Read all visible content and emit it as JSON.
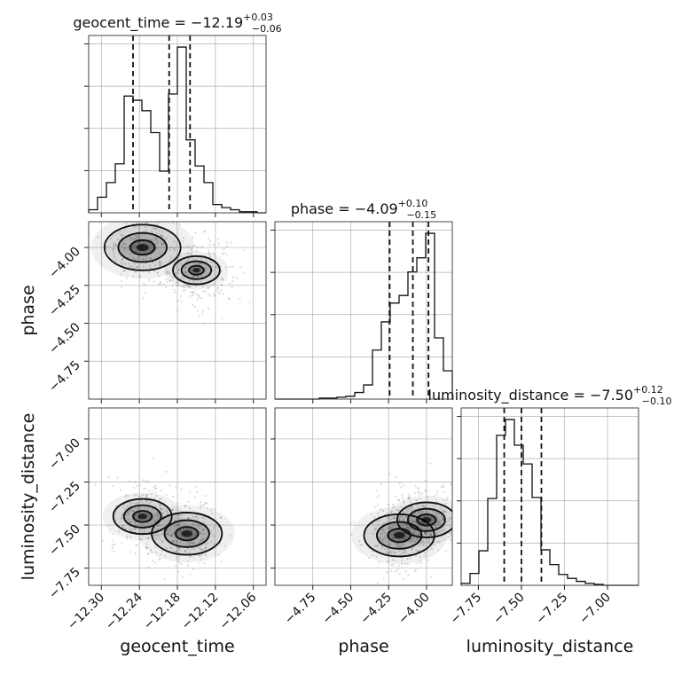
{
  "chart_data": {
    "type": "corner",
    "parameters": [
      "geocent_time",
      "phase",
      "luminosity_distance"
    ],
    "axis_labels": {
      "x": [
        "geocent_time",
        "phase",
        "luminosity_distance"
      ],
      "y": [
        "phase",
        "luminosity_distance"
      ]
    },
    "titles": [
      {
        "param": "geocent_time",
        "text": "geocent_time = −12.19",
        "sup": "+0.03",
        "sub": "−0.06"
      },
      {
        "param": "phase",
        "text": "phase = −4.09",
        "sup": "+0.10",
        "sub": "−0.15"
      },
      {
        "param": "luminosity_distance",
        "text": "luminosity_distance = −7.50",
        "sup": "+0.12",
        "sub": "−0.10"
      }
    ],
    "ranges": {
      "geocent_time": [
        -12.32,
        -12.04
      ],
      "phase": [
        -5.0,
        -3.83
      ],
      "luminosity_distance": [
        -7.85,
        -6.82
      ]
    },
    "ticks": {
      "geocent_time": [
        -12.3,
        -12.24,
        -12.18,
        -12.12,
        -12.06
      ],
      "phase": [
        -4.75,
        -4.5,
        -4.25,
        -4.0
      ],
      "luminosity_distance": [
        -7.75,
        -7.5,
        -7.25,
        -7.0
      ]
    },
    "tick_labels": {
      "geocent_time": [
        "−12.30",
        "−12.24",
        "−12.18",
        "−12.12",
        "−12.06"
      ],
      "phase": [
        "−4.75",
        "−4.50",
        "−4.25",
        "−4.00"
      ],
      "luminosity_distance": [
        "−7.75",
        "−7.50",
        "−7.25",
        "−7.00"
      ]
    },
    "grid": true,
    "quantiles": {
      "geocent_time": [
        -12.25,
        -12.193,
        -12.16
      ],
      "phase": [
        -4.243,
        -4.09,
        -3.987
      ],
      "luminosity_distance": [
        -7.6,
        -7.5,
        -7.384
      ]
    },
    "histograms": {
      "geocent_time": {
        "edges": [
          -12.32,
          -12.306,
          -12.292,
          -12.278,
          -12.264,
          -12.25,
          -12.236,
          -12.222,
          -12.208,
          -12.194,
          -12.18,
          -12.166,
          -12.152,
          -12.138,
          -12.124,
          -12.11,
          -12.096,
          -12.082,
          -12.068,
          -12.054,
          -12.04
        ],
        "counts": [
          3,
          15,
          29,
          47,
          112,
          108,
          98,
          77,
          40,
          114,
          159,
          70,
          45,
          29,
          8,
          5,
          3,
          1,
          1,
          0
        ]
      },
      "phase": {
        "edges": [
          -5.0,
          -4.9415,
          -4.883,
          -4.8245,
          -4.766,
          -4.7075,
          -4.649,
          -4.5905,
          -4.532,
          -4.4735,
          -4.415,
          -4.3565,
          -4.298,
          -4.2395,
          -4.181,
          -4.1225,
          -4.064,
          -4.0055,
          -3.947,
          -3.8885,
          -3.83
        ],
        "counts": [
          0,
          0,
          0,
          0,
          0,
          1,
          1,
          2,
          3,
          7,
          15,
          52,
          82,
          102,
          110,
          135,
          150,
          176,
          65,
          30
        ]
      },
      "luminosity_distance": {
        "edges": [
          -7.85,
          -7.7985,
          -7.747,
          -7.6955,
          -7.644,
          -7.5925,
          -7.541,
          -7.4895,
          -7.438,
          -7.3865,
          -7.335,
          -7.2835,
          -7.232,
          -7.1805,
          -7.129,
          -7.0775,
          -7.026,
          -6.9745,
          -6.923,
          -6.8715,
          -6.82
        ],
        "counts": [
          2,
          12,
          35,
          88,
          152,
          168,
          142,
          123,
          89,
          36,
          21,
          11,
          7,
          4,
          2,
          1,
          0,
          0,
          0,
          0
        ]
      }
    },
    "density_2d": [
      {
        "x": "geocent_time",
        "y": "phase",
        "modes": [
          {
            "x": -12.235,
            "y": -4.0,
            "weight": 1.3
          },
          {
            "x": -12.15,
            "y": -4.15,
            "weight": 0.8
          }
        ]
      },
      {
        "x": "geocent_time",
        "y": "luminosity_distance",
        "modes": [
          {
            "x": -12.235,
            "y": -7.45,
            "weight": 1.0
          },
          {
            "x": -12.165,
            "y": -7.55,
            "weight": 1.2
          }
        ]
      },
      {
        "x": "phase",
        "y": "luminosity_distance",
        "modes": [
          {
            "x": -4.18,
            "y": -7.56,
            "weight": 1.2
          },
          {
            "x": -4.0,
            "y": -7.47,
            "weight": 1.0
          }
        ]
      }
    ]
  }
}
